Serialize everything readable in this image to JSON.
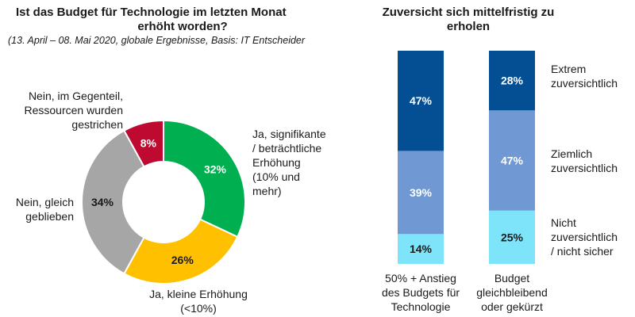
{
  "colors": {
    "green": "#00AF4F",
    "yellow": "#FFC000",
    "grey": "#A6A6A6",
    "red": "#BE0A31",
    "dark_blue": "#044E94",
    "mid_blue": "#7099D3",
    "light_cyan": "#7EE4FA"
  },
  "chart_data": [
    {
      "type": "pie",
      "variant": "donut",
      "title_line1": "Ist das Budget für Technologie im letzten Monat",
      "title_line2": "erhöht worden?",
      "subtitle": "(13. April – 08. Mai 2020, globale Ergebnisse, Basis: IT Entscheider",
      "slices": [
        {
          "label_lines": [
            "Ja, signifikante",
            "/ beträchtliche",
            "Erhöhung",
            "(10% und",
            "mehr)"
          ],
          "value": 32,
          "value_label": "32%",
          "color": "#00AF4F"
        },
        {
          "label_lines": [
            "Ja, kleine Erhöhung",
            "(<10%)"
          ],
          "value": 26,
          "value_label": "26%",
          "color": "#FFC000"
        },
        {
          "label_lines": [
            "Nein, gleich",
            "geblieben"
          ],
          "value": 34,
          "value_label": "34%",
          "color": "#A6A6A6"
        },
        {
          "label_lines": [
            "Nein, im Gegenteil,",
            "Ressourcen wurden",
            "gestrichen"
          ],
          "value": 8,
          "value_label": "8%",
          "color": "#BE0A31"
        }
      ]
    },
    {
      "type": "bar",
      "variant": "stacked-100",
      "title_line1": "Zuversicht sich mittelfristig zu",
      "title_line2": "erholen",
      "categories": [
        {
          "label_lines": [
            "50% + Anstieg",
            "des Budgets für",
            "Technologie"
          ]
        },
        {
          "label_lines": [
            "Budget",
            "gleichbleibend",
            "oder gekürzt"
          ]
        }
      ],
      "series": [
        {
          "name_lines": [
            "Nicht",
            "zuversichtlich",
            "/ nicht sicher"
          ],
          "values": [
            14,
            25
          ],
          "value_labels": [
            "14%",
            "25%"
          ],
          "color": "#7EE4FA"
        },
        {
          "name_lines": [
            "Ziemlich",
            "zuversichtlich"
          ],
          "values": [
            39,
            47
          ],
          "value_labels": [
            "39%",
            "47%"
          ],
          "color": "#7099D3"
        },
        {
          "name_lines": [
            "Extrem",
            "zuversichtlich"
          ],
          "values": [
            47,
            28
          ],
          "value_labels": [
            "47%",
            "28%"
          ],
          "color": "#044E94"
        }
      ],
      "ylim": [
        0,
        100
      ]
    }
  ]
}
